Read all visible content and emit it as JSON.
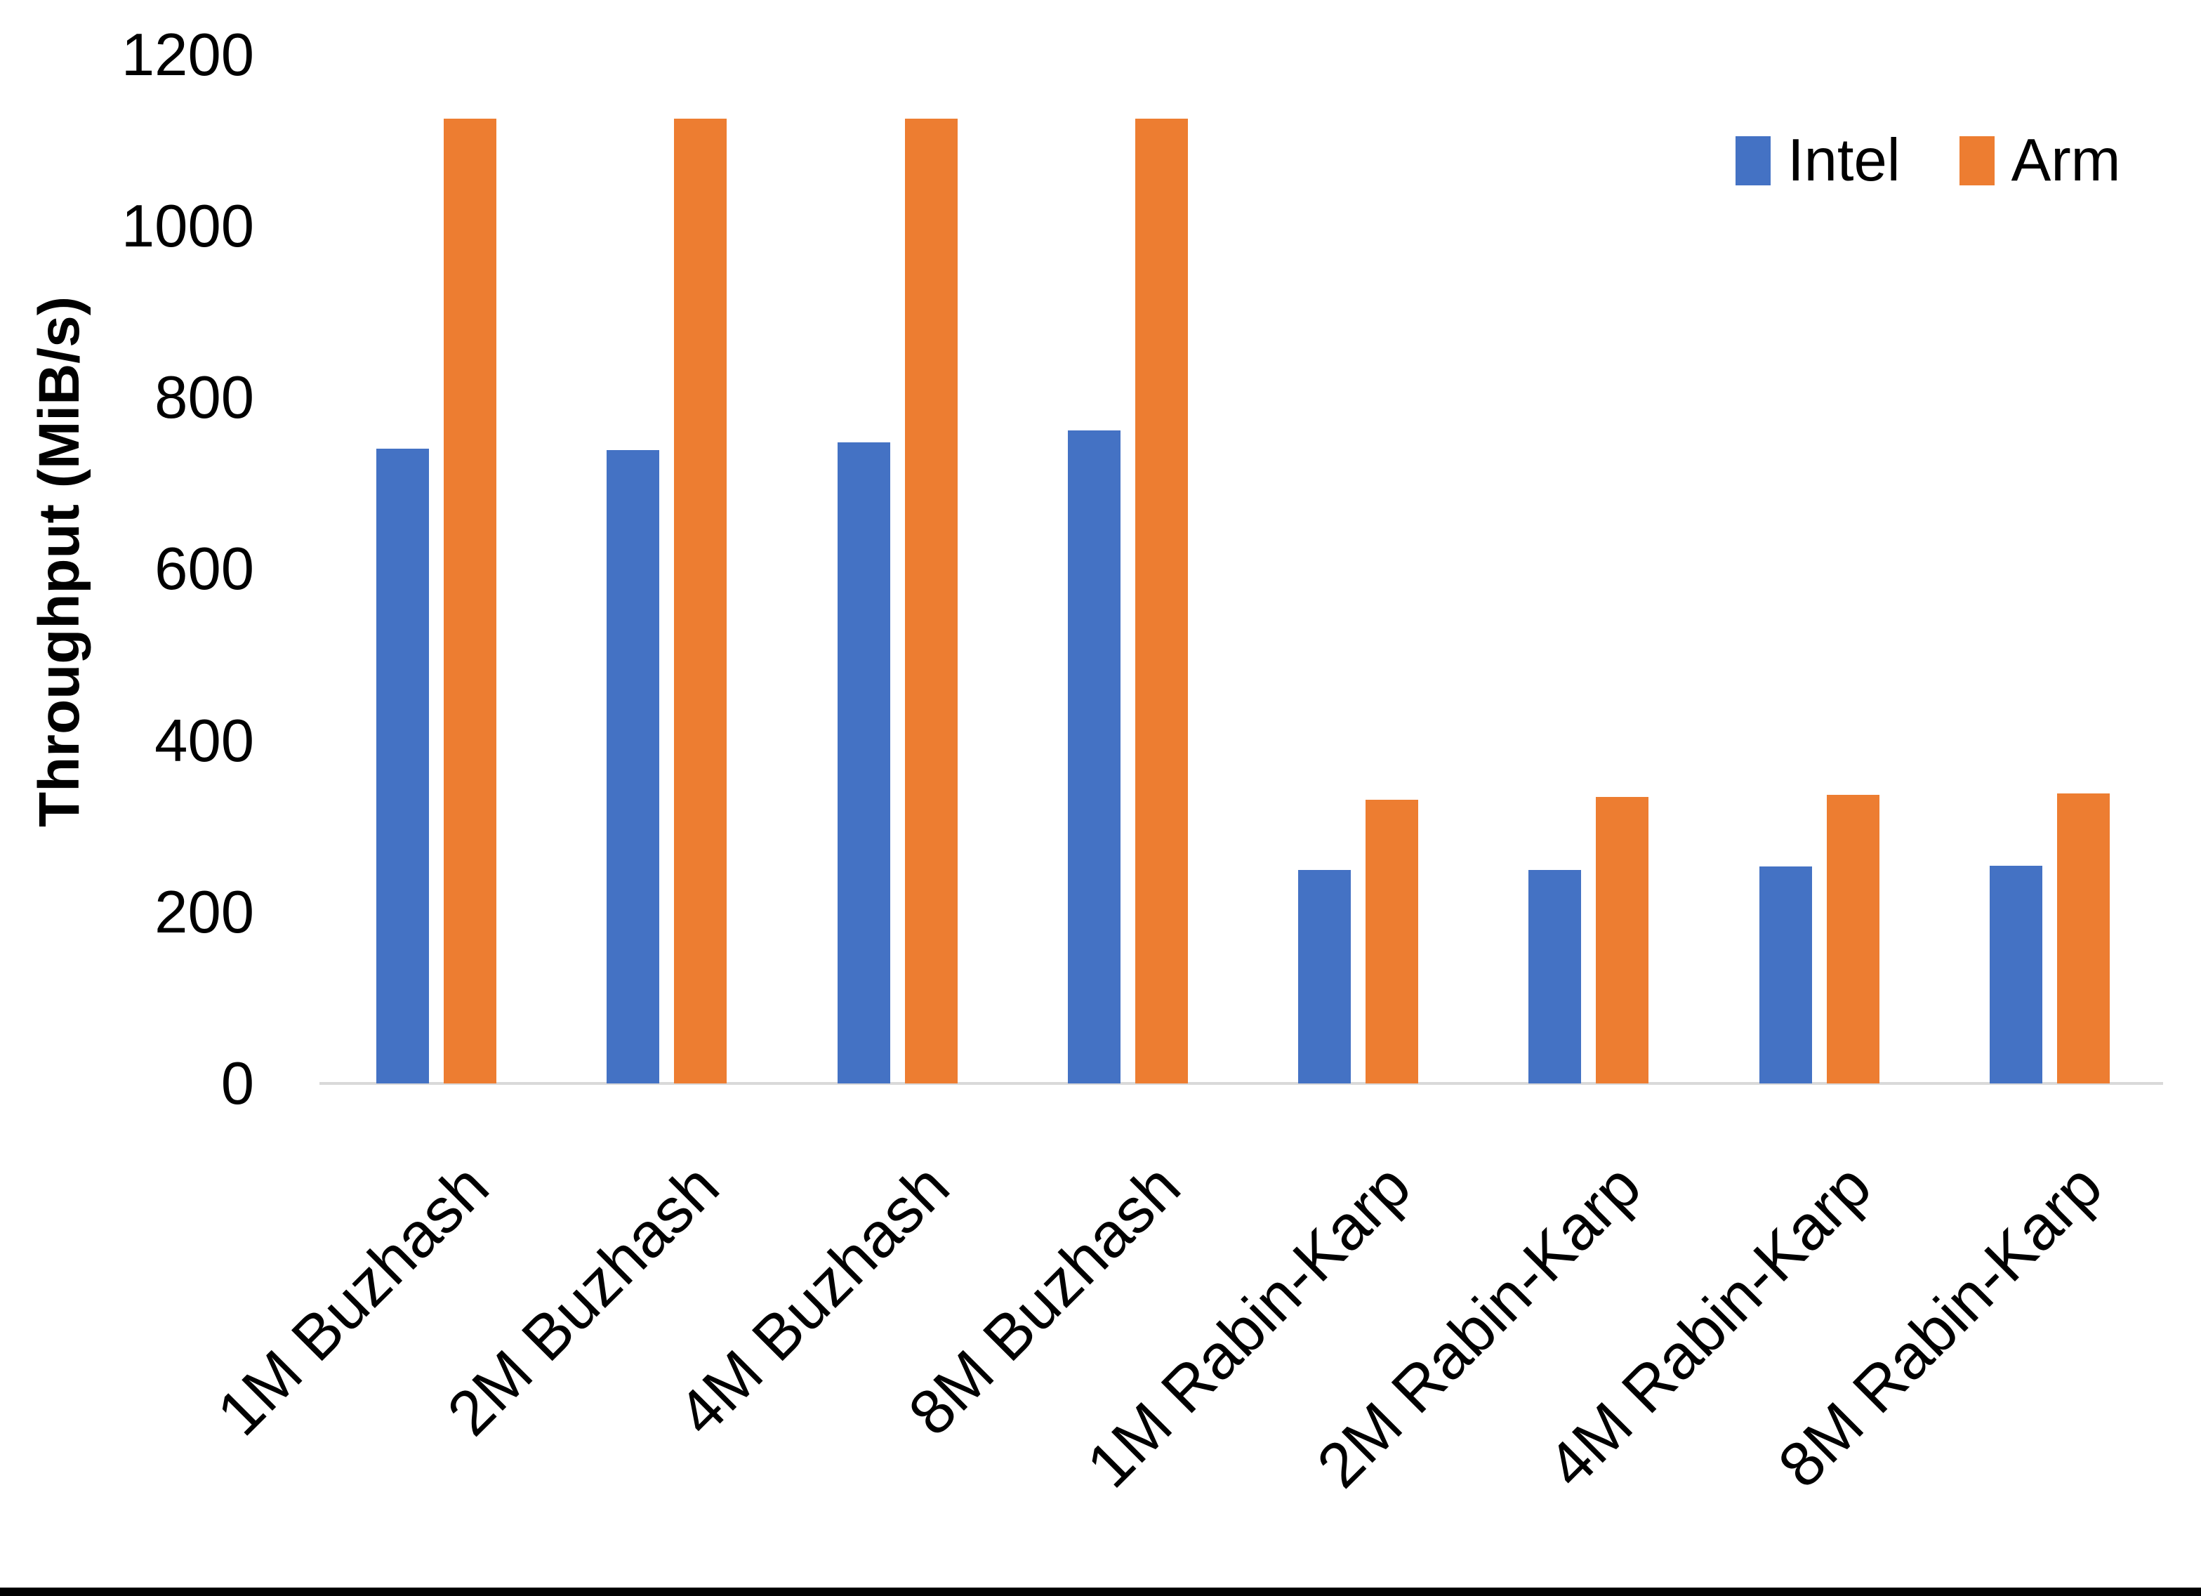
{
  "chart_data": {
    "type": "bar",
    "title": "",
    "xlabel": "",
    "ylabel": "Throughput (MiB/s)",
    "categories": [
      "1M Buzhash",
      "2M Buzhash",
      "4M Buzhash",
      "8M Buzhash",
      "1M Rabin-Karp",
      "2M Rabin-Karp",
      "4M Rabin-Karp",
      "8M Rabin-Karp"
    ],
    "series": [
      {
        "name": "Intel",
        "color": "#4472C4",
        "values": [
          740,
          739,
          748,
          762,
          249,
          249,
          253,
          254
        ]
      },
      {
        "name": "Arm",
        "color": "#ED7D31",
        "values": [
          1125,
          1125,
          1125,
          1125,
          331,
          334,
          337,
          338
        ]
      }
    ],
    "ylim": [
      0,
      1200
    ],
    "yticks": [
      0,
      200,
      400,
      600,
      800,
      1000,
      1200
    ],
    "ytick_labels": [
      "0",
      "200",
      "400",
      "600",
      "800",
      "1000",
      "1200"
    ],
    "grid": false,
    "legend_position": "top-right",
    "axis_line_color": "#D9D9D9",
    "text_color": "#000000",
    "background_color": "#FFFFFF",
    "bottom_border_color": "#000000"
  }
}
